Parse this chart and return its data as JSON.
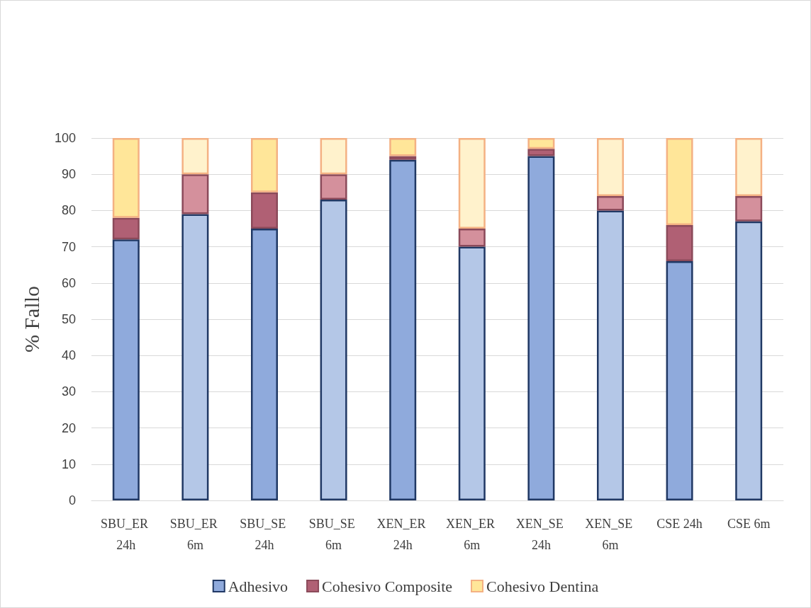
{
  "chart_data": {
    "type": "bar",
    "stacked": true,
    "ylabel": "% Fallo",
    "categories": [
      "SBU_ER 24h",
      "SBU_ER 6m",
      "SBU_SE 24h",
      "SBU_SE 6m",
      "XEN_ER 24h",
      "XEN_ER 6m",
      "XEN_SE 24h",
      "XEN_SE 6m",
      "CSE 24h",
      "CSE 6m"
    ],
    "series": [
      {
        "name": "Adhesivo",
        "color": "#8faadc",
        "colors": [
          "#8faadc",
          "#b4c7e7",
          "#8faadc",
          "#b4c7e7",
          "#8faadc",
          "#b4c7e7",
          "#8faadc",
          "#b4c7e7",
          "#8faadc",
          "#b4c7e7"
        ],
        "values": [
          72,
          79,
          75,
          83,
          94,
          70,
          95,
          80,
          66,
          77
        ]
      },
      {
        "name": "Cohesivo Composite",
        "color": "#b06074",
        "colors": [
          "#b06074",
          "#d4909c",
          "#b06074",
          "#d4909c",
          "#b06074",
          "#d4909c",
          "#b06074",
          "#d4909c",
          "#b06074",
          "#d4909c"
        ],
        "values": [
          6,
          11,
          10,
          7,
          1,
          5,
          2,
          4,
          10,
          7
        ]
      },
      {
        "name": "Cohesivo Dentina",
        "color": "#ffe699",
        "colors": [
          "#ffe699",
          "#fff2cc",
          "#ffe699",
          "#fff2cc",
          "#ffe699",
          "#fff2cc",
          "#ffe699",
          "#fff2cc",
          "#ffe699",
          "#fff2cc"
        ],
        "values": [
          22,
          10,
          15,
          10,
          5,
          25,
          3,
          16,
          24,
          16
        ]
      }
    ],
    "ylim": [
      0,
      100
    ],
    "yticks": [
      0,
      10,
      20,
      30,
      40,
      50,
      60,
      70,
      80,
      90,
      100
    ],
    "grid": "y",
    "legend": "bottom"
  }
}
